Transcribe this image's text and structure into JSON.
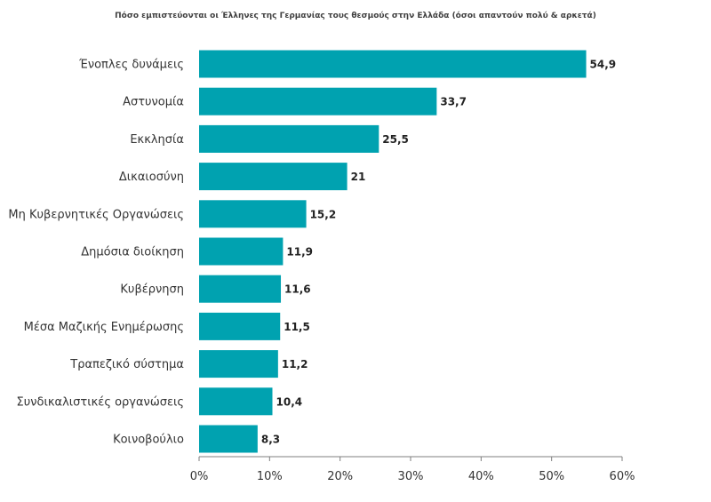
{
  "chart_data": {
    "type": "bar",
    "orientation": "horizontal",
    "title": "Πόσο εμπιστεύονται οι Έλληνες της Γερμανίας τους θεσμούς στην Ελλάδα (όσοι απαντούν πολύ & αρκετά)",
    "categories": [
      "Ένοπλες δυνάμεις",
      "Αστυνομία",
      "Εκκλησία",
      "Δικαιοσύνη",
      "Μη Κυβερνητικές Οργανώσεις",
      "Δημόσια διοίκηση",
      "Κυβέρνηση",
      "Μέσα Μαζικής Ενημέρωσης",
      "Τραπεζικό σύστημα",
      "Συνδικαλιστικές οργανώσεις",
      "Κοινοβούλιο"
    ],
    "values": [
      54.9,
      33.7,
      25.5,
      21,
      15.2,
      11.9,
      11.6,
      11.5,
      11.2,
      10.4,
      8.3
    ],
    "value_labels": [
      "54,9",
      "33,7",
      "25,5",
      "21",
      "15,2",
      "11,9",
      "11,6",
      "11,5",
      "11,2",
      "10,4",
      "8,3"
    ],
    "xlim": [
      0,
      60
    ],
    "x_ticks": [
      0,
      10,
      20,
      30,
      40,
      50,
      60
    ],
    "x_tick_labels": [
      "0%",
      "10%",
      "20%",
      "30%",
      "40%",
      "50%",
      "60%"
    ],
    "xlabel": "",
    "ylabel": "",
    "grid": false,
    "legend": "none",
    "bar_color": "#00A2B0"
  }
}
